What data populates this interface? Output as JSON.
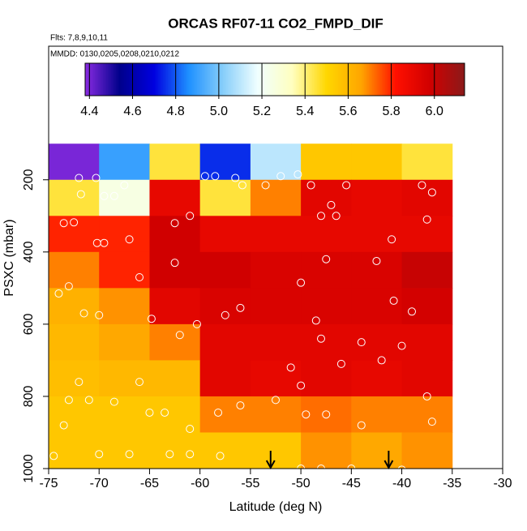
{
  "chart_data": {
    "type": "heatmap",
    "title": "ORCAS RF07-11 CO2_FMPD_DIF",
    "subtitle": "Flts: 7,8,9,10,11",
    "annotation": "MMDD: 0130,0205,0208,0210,0212",
    "xlabel": "Latitude (deg N)",
    "ylabel": "PSXC (mbar)",
    "xlim": [
      -75,
      -30
    ],
    "xticks": [
      -75,
      -70,
      -65,
      -60,
      -55,
      -50,
      -45,
      -40,
      -35,
      -30
    ],
    "ylim": [
      1000,
      -170
    ],
    "yticks": [
      200,
      400,
      600,
      800,
      1000
    ],
    "x_edges": [
      -75,
      -70,
      -65,
      -60,
      -55,
      -50,
      -45,
      -40,
      -35
    ],
    "y_edges": [
      100,
      200,
      300,
      400,
      500,
      600,
      700,
      800,
      900,
      1000
    ],
    "z": [
      [
        4.4,
        4.9,
        5.45,
        4.75,
        5.1,
        5.55,
        5.55,
        5.45
      ],
      [
        5.45,
        5.25,
        5.9,
        5.45,
        5.7,
        5.92,
        5.9,
        5.92
      ],
      [
        5.8,
        5.8,
        5.98,
        5.9,
        5.9,
        5.9,
        5.9,
        5.9
      ],
      [
        5.7,
        5.8,
        5.98,
        5.98,
        5.95,
        5.95,
        5.95,
        6.0
      ],
      [
        5.62,
        5.68,
        5.92,
        5.95,
        5.95,
        5.95,
        5.95,
        5.97
      ],
      [
        5.6,
        5.65,
        5.7,
        5.92,
        5.92,
        5.92,
        5.92,
        5.92
      ],
      [
        5.58,
        5.6,
        5.6,
        5.92,
        5.9,
        5.92,
        5.9,
        5.92
      ],
      [
        5.55,
        5.55,
        5.55,
        5.7,
        5.7,
        5.72,
        5.7,
        5.7
      ],
      [
        5.55,
        5.55,
        5.55,
        5.55,
        5.55,
        5.68,
        5.65,
        5.68
      ]
    ],
    "zlim": [
      4.38,
      6.14
    ],
    "colors": [
      "#8a2be2",
      "#00008b",
      "#0000e0",
      "#1e90ff",
      "#87cefa",
      "#f0ffff",
      "#ffffc0",
      "#ffd700",
      "#ffa500",
      "#ff1000",
      "#d00000",
      "#8b1a1a"
    ],
    "zticks": [
      4.4,
      4.6,
      4.8,
      {
        "value": 5,
        "label": "5.0"
      },
      5.2,
      5.4,
      5.6,
      5.8,
      {
        "value": 6,
        "label": "6.0"
      }
    ],
    "points": {
      "x": [
        -72,
        -70.3,
        -67.5,
        -68.5,
        -69.5,
        -71.8,
        -73.5,
        -72.5,
        -70.2,
        -69.5,
        -67,
        -66,
        -73,
        -74,
        -71.5,
        -70,
        -64.8,
        -62.5,
        -62.5,
        -61,
        -62,
        -60.3,
        -57.5,
        -56,
        -59.5,
        -58.5,
        -56.5,
        -55.8,
        -53.5,
        -52,
        -50.3,
        -49,
        -45.5,
        -38,
        -37,
        -37.5,
        -41,
        -42.5,
        -46.5,
        -47,
        -48,
        -47.5,
        -50,
        -48.5,
        -48,
        -46,
        -44,
        -42,
        -40.8,
        -39,
        -40,
        -56,
        -58.2,
        -63.5,
        -65,
        -61,
        -72,
        -73,
        -71,
        -68.5,
        -66,
        -67,
        -70,
        -63,
        -61,
        -58,
        -50,
        -48,
        -45,
        -40,
        -73.5,
        -74.5,
        -37.5,
        -37,
        -44,
        -47.5,
        -49.5,
        -50,
        -51,
        -52.5
      ],
      "y": [
        195,
        195,
        215,
        245,
        245,
        240,
        320,
        318,
        375,
        375,
        365,
        470,
        495,
        515,
        570,
        575,
        585,
        430,
        320,
        300,
        630,
        600,
        575,
        555,
        190,
        190,
        195,
        215,
        215,
        190,
        185,
        215,
        215,
        215,
        235,
        310,
        365,
        425,
        300,
        270,
        300,
        420,
        485,
        590,
        640,
        710,
        650,
        700,
        535,
        565,
        660,
        825,
        845,
        845,
        845,
        890,
        760,
        810,
        810,
        815,
        760,
        960,
        960,
        960,
        960,
        965,
        1000,
        1000,
        1000,
        1003,
        880,
        965,
        800,
        870,
        880,
        850,
        850,
        770,
        720,
        810
      ]
    },
    "arrows_x": [
      -53,
      -41.3
    ]
  }
}
